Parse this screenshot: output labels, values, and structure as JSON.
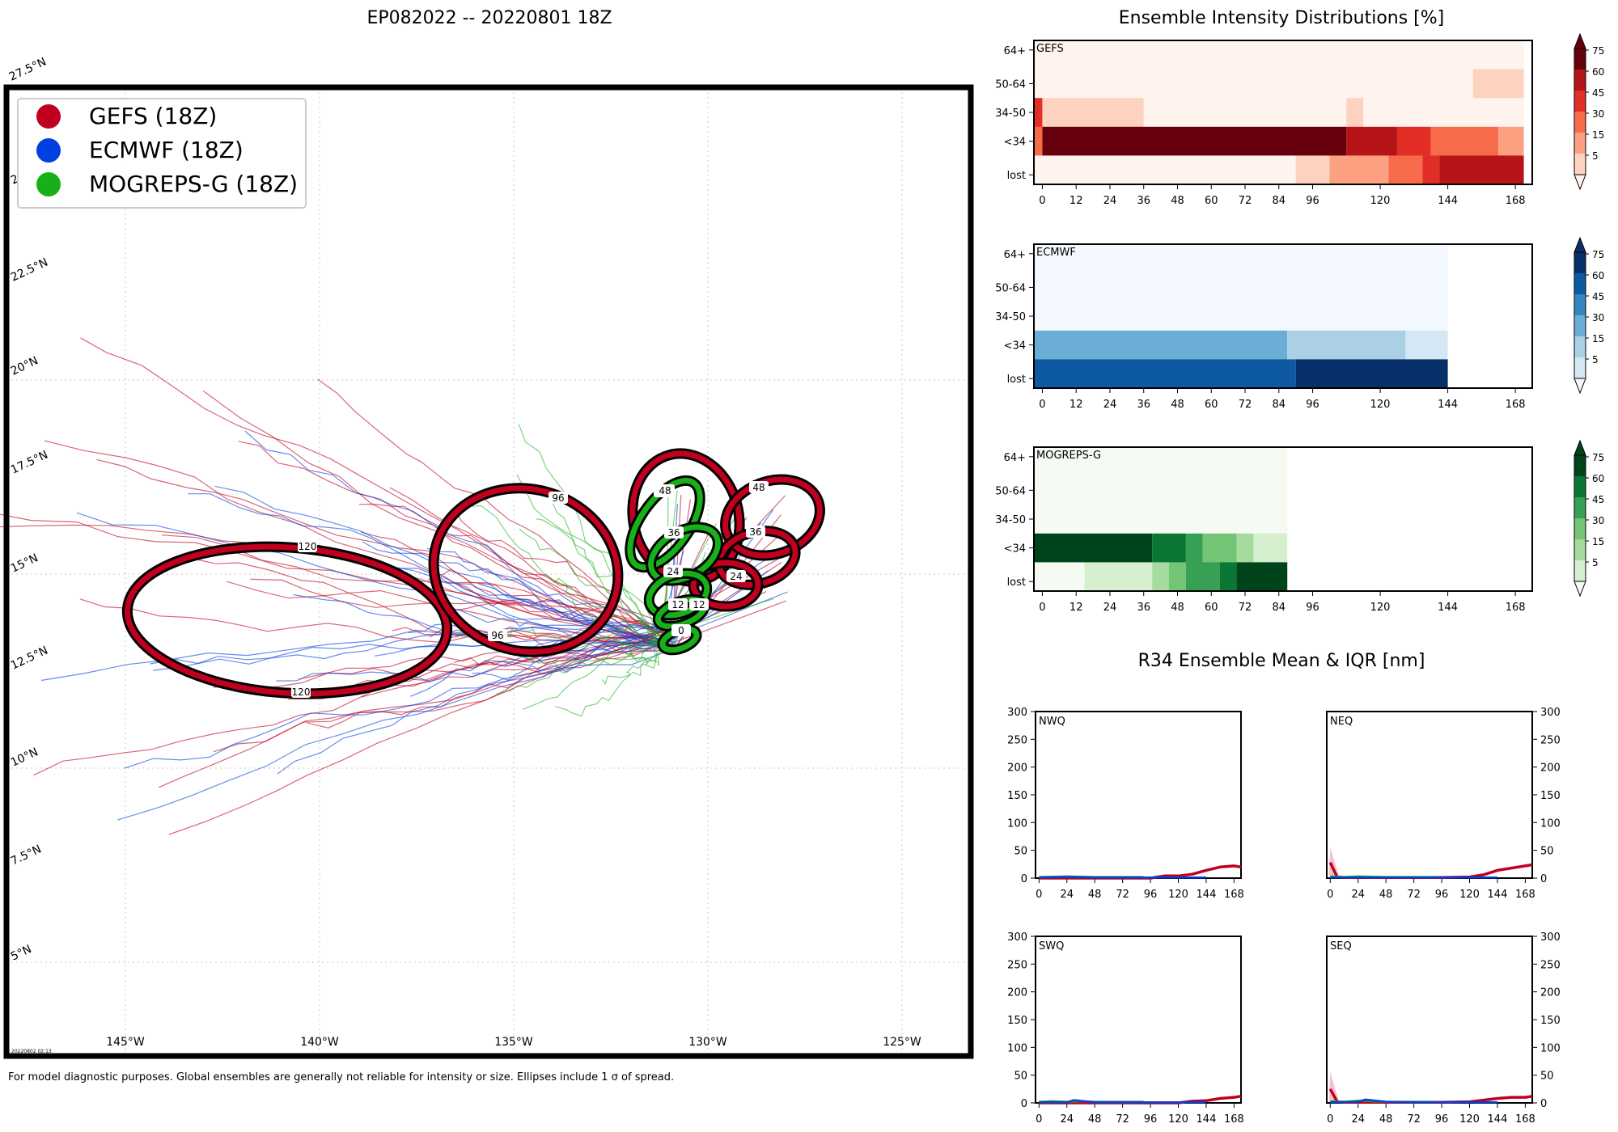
{
  "title": "EP082022 -- 20220801 18Z",
  "footnote": "For model diagnostic purposes. Global ensembles are generally not reliable for intensity or size. Ellipses include 1 σ of spread.",
  "timestamp": "20220802 02:13",
  "colors": {
    "gefs": "#c0001f",
    "ecmwf": "#0040e0",
    "mogreps": "#18b018"
  },
  "map": {
    "legend": [
      {
        "label": "GEFS (18Z)",
        "color": "#c0001f"
      },
      {
        "label": "ECMWF (18Z)",
        "color": "#0040e0"
      },
      {
        "label": "MOGREPS-G (18Z)",
        "color": "#18b018"
      }
    ],
    "lon_ticks": [
      "145°W",
      "140°W",
      "135°W",
      "130°W",
      "125°W"
    ],
    "lat_ticks": [
      "27.5°N",
      "22.5°N",
      "20°N",
      "17.5°N",
      "15°N",
      "12.5°N",
      "10°N",
      "7.5°N",
      "5°N"
    ],
    "lat_partial": "2",
    "ellipse_labels": {
      "gefs": [
        "120",
        "120",
        "96",
        "96",
        "48",
        "48",
        "36",
        "24"
      ],
      "mogreps": [
        "48",
        "36",
        "24",
        "12",
        "12",
        "0"
      ]
    }
  },
  "chart_data": [
    {
      "type": "heatmap",
      "title": "Ensemble Intensity Distributions [%]",
      "panels": [
        {
          "name": "GEFS",
          "colormap": "Reds",
          "rows": [
            "64+",
            "50-64",
            "34-50",
            "<34",
            "lost"
          ],
          "x_ticks": [
            "0",
            "12",
            "24",
            "36",
            "48",
            "60",
            "72",
            "84",
            "96",
            "120",
            "144",
            "168"
          ],
          "cells": [
            {
              "row": "64+",
              "from": 0,
              "to": 174,
              "value": 0
            },
            {
              "row": "50-64",
              "from": 0,
              "to": 156,
              "value": 0
            },
            {
              "row": "50-64",
              "from": 156,
              "to": 174,
              "value": 10
            },
            {
              "row": "34-50",
              "from": 0,
              "to": 3,
              "value": 45
            },
            {
              "row": "34-50",
              "from": 3,
              "to": 39,
              "value": 10
            },
            {
              "row": "34-50",
              "from": 39,
              "to": 111,
              "value": 0
            },
            {
              "row": "34-50",
              "from": 111,
              "to": 117,
              "value": 10
            },
            {
              "row": "34-50",
              "from": 117,
              "to": 174,
              "value": 0
            },
            {
              "row": "<34",
              "from": 0,
              "to": 3,
              "value": 40
            },
            {
              "row": "<34",
              "from": 3,
              "to": 111,
              "value": 90
            },
            {
              "row": "<34",
              "from": 111,
              "to": 129,
              "value": 65
            },
            {
              "row": "<34",
              "from": 129,
              "to": 141,
              "value": 50
            },
            {
              "row": "<34",
              "from": 141,
              "to": 165,
              "value": 35
            },
            {
              "row": "<34",
              "from": 165,
              "to": 174,
              "value": 25
            },
            {
              "row": "lost",
              "from": 0,
              "to": 93,
              "value": 0
            },
            {
              "row": "lost",
              "from": 93,
              "to": 105,
              "value": 10
            },
            {
              "row": "lost",
              "from": 105,
              "to": 126,
              "value": 25
            },
            {
              "row": "lost",
              "from": 126,
              "to": 138,
              "value": 35
            },
            {
              "row": "lost",
              "from": 138,
              "to": 144,
              "value": 45
            },
            {
              "row": "lost",
              "from": 144,
              "to": 174,
              "value": 60
            }
          ]
        },
        {
          "name": "ECMWF",
          "colormap": "Blues",
          "rows": [
            "64+",
            "50-64",
            "34-50",
            "<34",
            "lost"
          ],
          "x_ticks": [
            "0",
            "12",
            "24",
            "36",
            "48",
            "60",
            "72",
            "84",
            "96",
            "120",
            "144",
            "168"
          ],
          "cells": [
            {
              "row": "64+",
              "from": 0,
              "to": 147,
              "value": 0
            },
            {
              "row": "50-64",
              "from": 0,
              "to": 147,
              "value": 0
            },
            {
              "row": "34-50",
              "from": 0,
              "to": 147,
              "value": 0
            },
            {
              "row": "<34",
              "from": 0,
              "to": 90,
              "value": 38
            },
            {
              "row": "<34",
              "from": 90,
              "to": 132,
              "value": 28
            },
            {
              "row": "<34",
              "from": 132,
              "to": 147,
              "value": 12
            },
            {
              "row": "lost",
              "from": 0,
              "to": 93,
              "value": 60
            },
            {
              "row": "lost",
              "from": 93,
              "to": 147,
              "value": 85
            }
          ]
        },
        {
          "name": "MOGREPS-G",
          "colormap": "Greens",
          "rows": [
            "64+",
            "50-64",
            "34-50",
            "<34",
            "lost"
          ],
          "x_ticks": [
            "0",
            "12",
            "24",
            "36",
            "48",
            "60",
            "72",
            "84",
            "96",
            "120",
            "144",
            "168"
          ],
          "cells": [
            {
              "row": "64+",
              "from": 0,
              "to": 90,
              "value": 0
            },
            {
              "row": "50-64",
              "from": 0,
              "to": 90,
              "value": 0
            },
            {
              "row": "34-50",
              "from": 0,
              "to": 90,
              "value": 0
            },
            {
              "row": "<34",
              "from": 0,
              "to": 42,
              "value": 90
            },
            {
              "row": "<34",
              "from": 42,
              "to": 54,
              "value": 60
            },
            {
              "row": "<34",
              "from": 54,
              "to": 60,
              "value": 45
            },
            {
              "row": "<34",
              "from": 60,
              "to": 72,
              "value": 35
            },
            {
              "row": "<34",
              "from": 72,
              "to": 78,
              "value": 20
            },
            {
              "row": "<34",
              "from": 78,
              "to": 90,
              "value": 10
            },
            {
              "row": "lost",
              "from": 0,
              "to": 18,
              "value": 3
            },
            {
              "row": "lost",
              "from": 18,
              "to": 42,
              "value": 10
            },
            {
              "row": "lost",
              "from": 42,
              "to": 48,
              "value": 20
            },
            {
              "row": "lost",
              "from": 48,
              "to": 54,
              "value": 32
            },
            {
              "row": "lost",
              "from": 54,
              "to": 66,
              "value": 45
            },
            {
              "row": "lost",
              "from": 66,
              "to": 72,
              "value": 60
            },
            {
              "row": "lost",
              "from": 72,
              "to": 90,
              "value": 85
            }
          ]
        }
      ],
      "colorbar_ticks": [
        "75",
        "60",
        "45",
        "30",
        "15",
        "5"
      ]
    },
    {
      "type": "line",
      "title": "R34 Ensemble Mean & IQR [nm]",
      "ylim": [
        0,
        300
      ],
      "y_ticks": [
        "300",
        "250",
        "200",
        "150",
        "100",
        "50",
        "0"
      ],
      "x_ticks": [
        "0",
        "24",
        "48",
        "72",
        "96",
        "120",
        "144",
        "168"
      ],
      "xlim": [
        -3,
        174
      ],
      "panels": [
        {
          "name": "NWQ",
          "series": [
            {
              "model": "GEFS",
              "x": [
                0,
                24,
                48,
                72,
                96,
                108,
                120,
                132,
                144,
                156,
                168,
                174
              ],
              "y": [
                0,
                0,
                0,
                0,
                0,
                4,
                4,
                7,
                14,
                20,
                22,
                20
              ]
            },
            {
              "model": "MOGREPS-G",
              "x": [
                0,
                24,
                48,
                72,
                90
              ],
              "y": [
                2,
                3,
                2,
                2,
                2
              ]
            },
            {
              "model": "ECMWF",
              "x": [
                0,
                24,
                48,
                72,
                96,
                120,
                144
              ],
              "y": [
                1,
                2,
                1,
                1,
                1,
                1,
                1
              ]
            }
          ]
        },
        {
          "name": "NEQ",
          "series": [
            {
              "model": "GEFS",
              "x": [
                0,
                6,
                12,
                24,
                48,
                72,
                96,
                120,
                132,
                144,
                156,
                168,
                174
              ],
              "y": [
                28,
                2,
                1,
                1,
                1,
                1,
                1,
                2,
                6,
                14,
                18,
                22,
                24
              ]
            },
            {
              "model": "MOGREPS-G",
              "x": [
                0,
                12,
                24,
                48,
                72,
                90
              ],
              "y": [
                3,
                2,
                3,
                2,
                2,
                2
              ]
            },
            {
              "model": "ECMWF",
              "x": [
                0,
                24,
                48,
                72,
                96,
                120,
                144
              ],
              "y": [
                1,
                1,
                1,
                1,
                1,
                1,
                1
              ]
            }
          ]
        },
        {
          "name": "SWQ",
          "series": [
            {
              "model": "GEFS",
              "x": [
                0,
                24,
                48,
                72,
                96,
                120,
                132,
                144,
                156,
                168,
                174
              ],
              "y": [
                0,
                0,
                0,
                0,
                0,
                0,
                3,
                4,
                8,
                10,
                12
              ]
            },
            {
              "model": "MOGREPS-G",
              "x": [
                0,
                12,
                24,
                36,
                48,
                72,
                90
              ],
              "y": [
                2,
                3,
                2,
                3,
                2,
                2,
                2
              ]
            },
            {
              "model": "ECMWF",
              "x": [
                0,
                24,
                30,
                48,
                72,
                96,
                120,
                144
              ],
              "y": [
                1,
                1,
                5,
                1,
                1,
                1,
                1,
                1
              ]
            }
          ]
        },
        {
          "name": "SEQ",
          "series": [
            {
              "model": "GEFS",
              "x": [
                0,
                6,
                12,
                24,
                48,
                72,
                96,
                120,
                132,
                144,
                156,
                168,
                174
              ],
              "y": [
                25,
                2,
                1,
                1,
                1,
                1,
                1,
                2,
                5,
                8,
                10,
                10,
                12
              ]
            },
            {
              "model": "MOGREPS-G",
              "x": [
                0,
                12,
                24,
                48,
                72,
                90
              ],
              "y": [
                3,
                2,
                4,
                2,
                2,
                2
              ]
            },
            {
              "model": "ECMWF",
              "x": [
                0,
                24,
                30,
                48,
                72,
                96,
                120,
                144
              ],
              "y": [
                1,
                2,
                6,
                2,
                1,
                1,
                1,
                1
              ]
            }
          ]
        }
      ]
    }
  ]
}
